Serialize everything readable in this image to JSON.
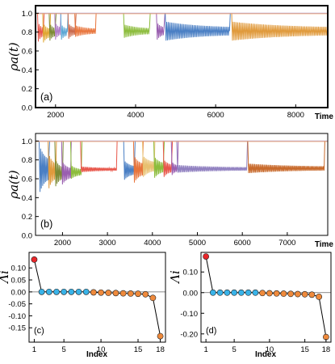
{
  "chart_data": [
    {
      "panel": "(a)",
      "type": "line",
      "xlabel": "Time",
      "ylabel": "ρa(t)",
      "xlim": [
        1500,
        8800
      ],
      "ylim": [
        0.0,
        1.08
      ],
      "x_ticks": [
        2000,
        4000,
        6000,
        8000
      ],
      "y_ticks": [
        0.0,
        0.2,
        0.4,
        0.6,
        0.8,
        1.0
      ],
      "x_tick_labels": [
        "2000",
        "4000",
        "6000",
        "8000"
      ],
      "y_tick_labels": [
        "0.0",
        "0.2",
        "0.4",
        "0.6",
        "0.8",
        "1.0"
      ],
      "baseline": 1.0,
      "final_level": 0.81,
      "segments": [
        {
          "start": 1570,
          "end": 1700,
          "level": 0.8,
          "amp": 0.1,
          "color": "#e8564a"
        },
        {
          "start": 1700,
          "end": 1860,
          "level": 0.79,
          "amp": 0.1,
          "color": "#e0a732"
        },
        {
          "start": 1860,
          "end": 2000,
          "level": 0.8,
          "amp": 0.09,
          "color": "#7c8a34"
        },
        {
          "start": 2000,
          "end": 2120,
          "level": 0.81,
          "amp": 0.09,
          "color": "#b07cc6"
        },
        {
          "start": 2150,
          "end": 2300,
          "level": 0.8,
          "amp": 0.08,
          "color": "#5aa6d4"
        },
        {
          "start": 2330,
          "end": 2500,
          "level": 0.81,
          "amp": 0.08,
          "color": "#c9674a"
        },
        {
          "start": 2500,
          "end": 3000,
          "level": 0.81,
          "amp": 0.06,
          "color": "#e8743b"
        },
        {
          "start": 3720,
          "end": 4350,
          "level": 0.81,
          "amp": 0.07,
          "color": "#8cbc3c"
        },
        {
          "start": 4540,
          "end": 4720,
          "level": 0.81,
          "amp": 0.09,
          "color": "#9a5fb0"
        },
        {
          "start": 4760,
          "end": 6350,
          "level": 0.81,
          "amp": 0.1,
          "color": "#4a7fc4"
        },
        {
          "start": 6420,
          "end": 8800,
          "level": 0.81,
          "amp": 0.1,
          "color": "#e09a3c"
        }
      ]
    },
    {
      "panel": "(b)",
      "type": "line",
      "xlabel": "Time",
      "ylabel": "ρa(t)",
      "xlim": [
        1400,
        7900
      ],
      "ylim": [
        0.0,
        1.08
      ],
      "x_ticks": [
        2000,
        3000,
        4000,
        5000,
        6000,
        7000
      ],
      "y_ticks": [
        0.0,
        0.2,
        0.4,
        0.6,
        0.8,
        1.0
      ],
      "x_tick_labels": [
        "2000",
        "3000",
        "4000",
        "5000",
        "6000",
        "7000"
      ],
      "y_tick_labels": [
        "0.0",
        "0.2",
        "0.4",
        "0.6",
        "0.8",
        "1.0"
      ],
      "baseline": 1.0,
      "segments": [
        {
          "start": 1500,
          "end": 1700,
          "level": 0.7,
          "amp": 0.24,
          "color": "#4a7fc4"
        },
        {
          "start": 1700,
          "end": 1850,
          "level": 0.68,
          "amp": 0.18,
          "color": "#e09a3c"
        },
        {
          "start": 1850,
          "end": 2000,
          "level": 0.66,
          "amp": 0.14,
          "color": "#7c8a34"
        },
        {
          "start": 2000,
          "end": 2180,
          "level": 0.66,
          "amp": 0.12,
          "color": "#9a5fb0"
        },
        {
          "start": 2200,
          "end": 2420,
          "level": 0.67,
          "amp": 0.07,
          "color": "#8cbc3c"
        },
        {
          "start": 2420,
          "end": 3200,
          "level": 0.7,
          "amp": 0.03,
          "color": "#e8564a"
        },
        {
          "start": 3380,
          "end": 3600,
          "level": 0.69,
          "amp": 0.1,
          "color": "#4a7fc4"
        },
        {
          "start": 3600,
          "end": 3780,
          "level": 0.7,
          "amp": 0.14,
          "color": "#e8743b"
        },
        {
          "start": 3800,
          "end": 4040,
          "level": 0.73,
          "amp": 0.11,
          "color": "#e8c070"
        },
        {
          "start": 4050,
          "end": 4250,
          "level": 0.72,
          "amp": 0.11,
          "color": "#8cbc3c"
        },
        {
          "start": 4260,
          "end": 4430,
          "level": 0.71,
          "amp": 0.09,
          "color": "#e8564a"
        },
        {
          "start": 4440,
          "end": 4560,
          "level": 0.71,
          "amp": 0.07,
          "color": "#9a5fb0"
        },
        {
          "start": 4560,
          "end": 6100,
          "level": 0.705,
          "amp": 0.04,
          "color": "#9080c0"
        },
        {
          "start": 6140,
          "end": 7820,
          "level": 0.71,
          "amp": 0.05,
          "color": "#c86a2c"
        }
      ]
    },
    {
      "panel": "(c)",
      "type": "scatter",
      "xlabel": "Index",
      "ylabel": "Λi",
      "xlim": [
        0.3,
        18.7
      ],
      "ylim": [
        -0.21,
        0.165
      ],
      "x_ticks": [
        1,
        5,
        10,
        15,
        18
      ],
      "y_ticks": [
        0.1,
        0.05,
        0.0,
        -0.05,
        -0.1,
        -0.15
      ],
      "x_tick_labels": [
        "1",
        "5",
        "10",
        "15",
        "18"
      ],
      "y_tick_labels": [
        "0.10",
        "0.05",
        "0.00",
        "-0.05",
        "-0.10",
        "-0.15"
      ],
      "x": [
        1,
        2,
        3,
        4,
        5,
        6,
        7,
        8,
        9,
        10,
        11,
        12,
        13,
        14,
        15,
        16,
        17,
        18
      ],
      "y": [
        0.135,
        0.0,
        0.0,
        0.0,
        0.0,
        0.0,
        0.0,
        0.0,
        -0.002,
        -0.003,
        -0.004,
        -0.005,
        -0.006,
        -0.007,
        -0.008,
        -0.01,
        -0.025,
        -0.185
      ],
      "point_colors": [
        "#e8262a",
        "#39b3e8",
        "#39b3e8",
        "#39b3e8",
        "#39b3e8",
        "#39b3e8",
        "#39b3e8",
        "#39b3e8",
        "#ef8a3c",
        "#ef8a3c",
        "#ef8a3c",
        "#ef8a3c",
        "#ef8a3c",
        "#ef8a3c",
        "#ef8a3c",
        "#ef8a3c",
        "#ef8a3c",
        "#ef8a3c"
      ]
    },
    {
      "panel": "(d)",
      "type": "scatter",
      "xlabel": "Index",
      "ylabel": "Λi",
      "xlim": [
        0.3,
        18.7
      ],
      "ylim": [
        -0.24,
        0.195
      ],
      "x_ticks": [
        1,
        5,
        10,
        15,
        18
      ],
      "y_ticks": [
        0.1,
        0.0,
        -0.1,
        -0.2
      ],
      "x_tick_labels": [
        "1",
        "5",
        "10",
        "15",
        "18"
      ],
      "y_tick_labels": [
        "0.10",
        "0.00",
        "-0.10",
        "-0.20"
      ],
      "x": [
        1,
        2,
        3,
        4,
        5,
        6,
        7,
        8,
        9,
        10,
        11,
        12,
        13,
        14,
        15,
        16,
        17,
        18
      ],
      "y": [
        0.175,
        0.0,
        0.0,
        0.0,
        0.0,
        0.0,
        0.0,
        0.0,
        -0.002,
        -0.003,
        -0.004,
        -0.005,
        -0.006,
        -0.007,
        -0.008,
        -0.01,
        -0.02,
        -0.215
      ],
      "point_colors": [
        "#e8262a",
        "#39b3e8",
        "#39b3e8",
        "#39b3e8",
        "#39b3e8",
        "#39b3e8",
        "#39b3e8",
        "#39b3e8",
        "#ef8a3c",
        "#ef8a3c",
        "#ef8a3c",
        "#ef8a3c",
        "#ef8a3c",
        "#ef8a3c",
        "#ef8a3c",
        "#ef8a3c",
        "#ef8a3c",
        "#ef8a3c"
      ]
    }
  ]
}
